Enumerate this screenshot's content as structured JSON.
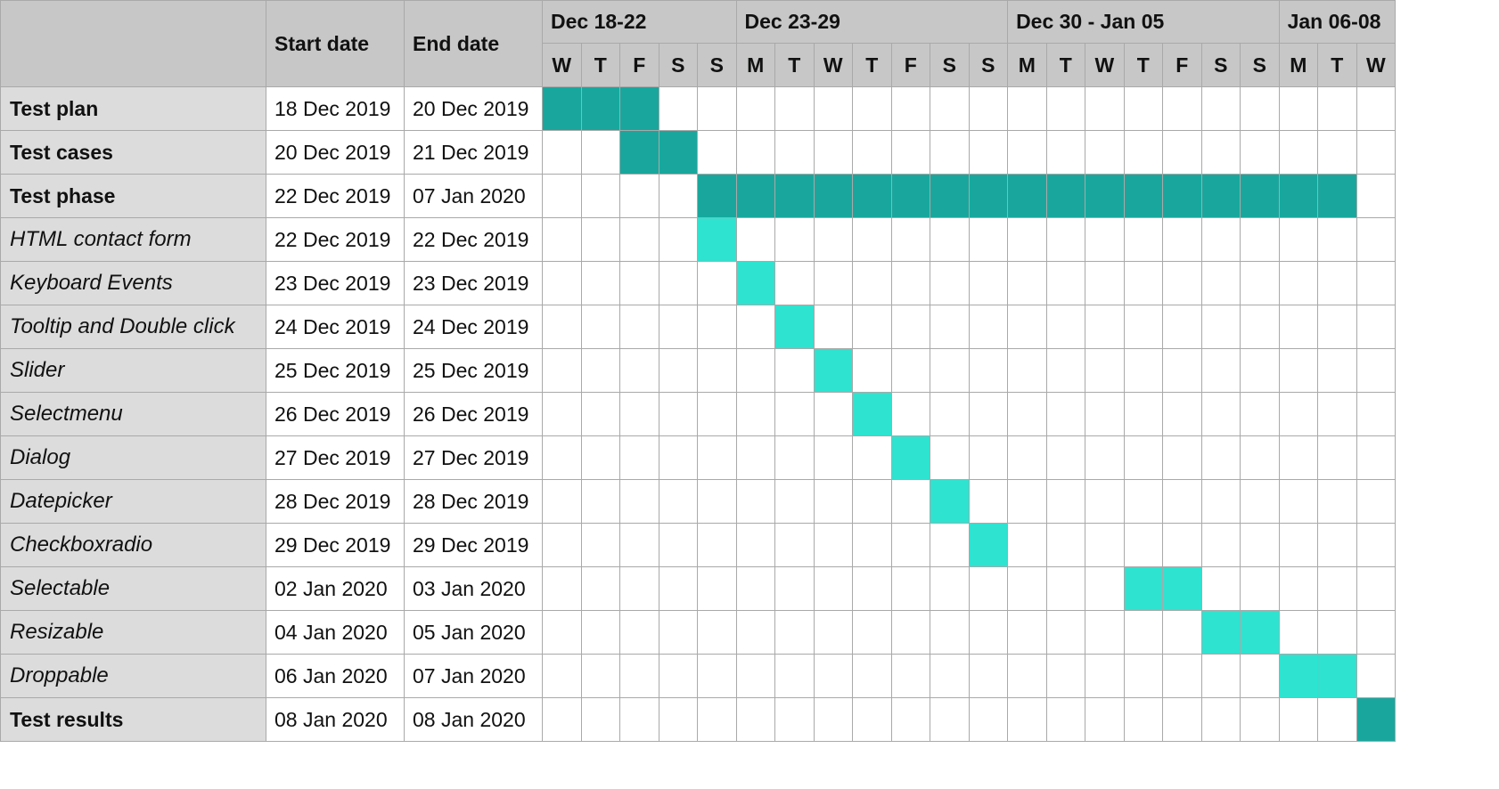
{
  "header": {
    "start_col": "Start date",
    "end_col": "End date",
    "weeks": [
      {
        "label": "Dec 18-22",
        "span": 5
      },
      {
        "label": "Dec 23-29",
        "span": 7
      },
      {
        "label": "Dec 30 - Jan 05",
        "span": 7
      },
      {
        "label": "Jan 06-08",
        "span": 3
      }
    ],
    "days": [
      "W",
      "T",
      "F",
      "S",
      "S",
      "M",
      "T",
      "W",
      "T",
      "F",
      "S",
      "S",
      "M",
      "T",
      "W",
      "T",
      "F",
      "S",
      "S",
      "M",
      "T",
      "W"
    ]
  },
  "colors": {
    "phase": "#19a79d",
    "subtask": "#2ee3d0",
    "header_bg": "#c6c7c6",
    "name_bg": "#dcdcdc",
    "grid": "#a9a9a9"
  },
  "chart_data": {
    "type": "gantt",
    "timeline": {
      "start": "18 Dec 2019",
      "end": "08 Jan 2020"
    },
    "tasks": [
      {
        "name": "Test plan",
        "start": "18 Dec 2019",
        "end": "20 Dec 2019",
        "style": "bold",
        "kind": "phase"
      },
      {
        "name": "Test cases",
        "start": "20 Dec 2019",
        "end": "21 Dec 2019",
        "style": "bold",
        "kind": "phase"
      },
      {
        "name": "Test phase",
        "start": "22 Dec 2019",
        "end": "07 Jan 2020",
        "style": "bold",
        "kind": "phase"
      },
      {
        "name": "HTML contact form",
        "start": "22 Dec 2019",
        "end": "22 Dec 2019",
        "style": "italic",
        "kind": "subtask"
      },
      {
        "name": "Keyboard Events",
        "start": "23 Dec 2019",
        "end": "23 Dec 2019",
        "style": "italic",
        "kind": "subtask"
      },
      {
        "name": "Tooltip and Double click",
        "start": "24 Dec 2019",
        "end": "24 Dec 2019",
        "style": "italic",
        "kind": "subtask"
      },
      {
        "name": "Slider",
        "start": "25 Dec 2019",
        "end": "25 Dec 2019",
        "style": "italic",
        "kind": "subtask"
      },
      {
        "name": "Selectmenu",
        "start": "26 Dec 2019",
        "end": "26 Dec 2019",
        "style": "italic",
        "kind": "subtask"
      },
      {
        "name": "Dialog",
        "start": "27 Dec 2019",
        "end": "27 Dec 2019",
        "style": "italic",
        "kind": "subtask"
      },
      {
        "name": "Datepicker",
        "start": "28 Dec 2019",
        "end": "28 Dec 2019",
        "style": "italic",
        "kind": "subtask"
      },
      {
        "name": "Checkboxradio",
        "start": "29 Dec 2019",
        "end": "29 Dec 2019",
        "style": "italic",
        "kind": "subtask"
      },
      {
        "name": "Selectable",
        "start": "02 Jan 2020",
        "end": "03 Jan 2020",
        "style": "italic",
        "kind": "subtask"
      },
      {
        "name": "Resizable",
        "start": "04 Jan 2020",
        "end": "05 Jan 2020",
        "style": "italic",
        "kind": "subtask"
      },
      {
        "name": "Droppable",
        "start": "06 Jan 2020",
        "end": "07 Jan 2020",
        "style": "italic",
        "kind": "subtask"
      },
      {
        "name": "Test results",
        "start": "08 Jan 2020",
        "end": "08 Jan 2020",
        "style": "bold",
        "kind": "phase"
      }
    ]
  }
}
